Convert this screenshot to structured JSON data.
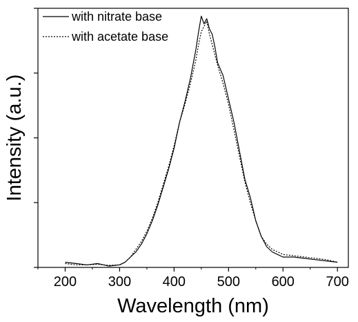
{
  "chart_data": {
    "type": "line",
    "xlabel": "Wavelength (nm)",
    "ylabel": "Intensity (a.u.)",
    "xlim": [
      150,
      720
    ],
    "ylim": [
      0,
      1.0
    ],
    "x_ticks": [
      "200",
      "300",
      "400",
      "500",
      "600",
      "700"
    ],
    "grid": false,
    "legend_position": "top-left",
    "series": [
      {
        "name": "with nitrate base",
        "style": "solid",
        "color": "#000000",
        "x": [
          200,
          220,
          240,
          260,
          280,
          300,
          310,
          320,
          330,
          340,
          350,
          360,
          370,
          380,
          390,
          400,
          410,
          420,
          430,
          440,
          445,
          450,
          455,
          460,
          465,
          470,
          475,
          480,
          490,
          500,
          510,
          520,
          530,
          540,
          550,
          560,
          570,
          580,
          590,
          600,
          620,
          640,
          660,
          680,
          700
        ],
        "y": [
          0.02,
          0.015,
          0.01,
          0.015,
          0.005,
          0.01,
          0.02,
          0.04,
          0.06,
          0.09,
          0.13,
          0.18,
          0.24,
          0.31,
          0.38,
          0.46,
          0.56,
          0.64,
          0.73,
          0.84,
          0.91,
          0.97,
          0.94,
          0.96,
          0.92,
          0.9,
          0.85,
          0.79,
          0.74,
          0.65,
          0.56,
          0.45,
          0.34,
          0.27,
          0.18,
          0.12,
          0.08,
          0.06,
          0.05,
          0.04,
          0.04,
          0.035,
          0.03,
          0.025,
          0.02
        ]
      },
      {
        "name": "with acetate base",
        "style": "dotted",
        "color": "#000000",
        "x": [
          200,
          220,
          240,
          260,
          280,
          300,
          310,
          320,
          330,
          340,
          350,
          360,
          370,
          380,
          390,
          400,
          410,
          420,
          430,
          440,
          445,
          450,
          455,
          460,
          465,
          470,
          475,
          480,
          490,
          500,
          510,
          520,
          530,
          540,
          550,
          560,
          570,
          580,
          590,
          600,
          620,
          640,
          660,
          680,
          700
        ],
        "y": [
          0.015,
          0.01,
          0.01,
          0.012,
          0.008,
          0.01,
          0.02,
          0.04,
          0.07,
          0.1,
          0.14,
          0.19,
          0.25,
          0.32,
          0.39,
          0.47,
          0.56,
          0.63,
          0.71,
          0.8,
          0.86,
          0.91,
          0.93,
          0.95,
          0.9,
          0.86,
          0.82,
          0.78,
          0.71,
          0.63,
          0.53,
          0.43,
          0.33,
          0.25,
          0.18,
          0.12,
          0.09,
          0.07,
          0.06,
          0.05,
          0.045,
          0.04,
          0.035,
          0.03,
          0.02
        ]
      }
    ]
  }
}
